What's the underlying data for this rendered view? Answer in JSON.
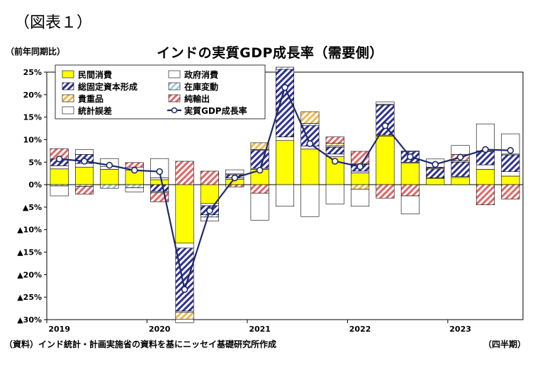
{
  "figure_label": "（図表１）",
  "unit_label": "（前年同期比）",
  "source_note": "（資料）インド統計・計画実施省の資料を基にニッセイ基礎研究所作成",
  "period_label": "（四半期）",
  "chart_data": {
    "type": "bar",
    "stacked": true,
    "title": "インドの実質GDP成長率（需要側）",
    "ylim": [
      -30,
      25
    ],
    "yticks": [
      {
        "value": 25,
        "label": "25%"
      },
      {
        "value": 20,
        "label": "20%"
      },
      {
        "value": 15,
        "label": "15%"
      },
      {
        "value": 10,
        "label": "10%"
      },
      {
        "value": 5,
        "label": "5%"
      },
      {
        "value": 0,
        "label": "0%"
      },
      {
        "value": -5,
        "label": "▲5%"
      },
      {
        "value": -10,
        "label": "▲10%"
      },
      {
        "value": -15,
        "label": "▲15%"
      },
      {
        "value": -20,
        "label": "▲20%"
      },
      {
        "value": -25,
        "label": "▲25%"
      },
      {
        "value": -30,
        "label": "▲30%"
      }
    ],
    "year_labels": [
      {
        "index": 0,
        "label": "2019"
      },
      {
        "index": 4,
        "label": "2020"
      },
      {
        "index": 8,
        "label": "2021"
      },
      {
        "index": 12,
        "label": "2022"
      },
      {
        "index": 16,
        "label": "2023"
      }
    ],
    "series": [
      {
        "name": "民間消費",
        "color": "#ffff00",
        "pattern": "solid",
        "values": [
          3.5,
          3.9,
          3.4,
          3.2,
          1.1,
          -13.0,
          -4.2,
          1.2,
          3.4,
          9.8,
          7.9,
          6.2,
          2.6,
          10.8,
          4.8,
          1.4,
          1.6,
          3.4,
          1.9
        ]
      },
      {
        "name": "政府消費",
        "color": "#ffffff",
        "pattern": "solid",
        "values": [
          0.7,
          0.8,
          0.6,
          0.7,
          0.4,
          -1.1,
          -0.5,
          0.3,
          0.2,
          0.8,
          0.7,
          0.6,
          0.4,
          0.2,
          0.2,
          0.1,
          0.2,
          1.0,
          1.0
        ]
      },
      {
        "name": "総固定資本形成",
        "color": "#2e3192",
        "pattern": "diag",
        "values": [
          1.5,
          2.0,
          0.0,
          0.0,
          -1.5,
          -14.0,
          -2.0,
          0.7,
          4.0,
          15.0,
          4.5,
          1.5,
          1.5,
          6.7,
          2.3,
          2.0,
          3.2,
          2.9,
          3.7
        ]
      },
      {
        "name": "在庫変動",
        "color": "#9fc3e7",
        "pattern": "diag-light",
        "values": [
          -0.3,
          -0.4,
          -0.8,
          -0.7,
          -0.3,
          -0.3,
          -0.5,
          0.2,
          0.2,
          0.5,
          0.5,
          0.3,
          0.2,
          0.2,
          0.2,
          0.2,
          0.3,
          0.2,
          0.2
        ]
      },
      {
        "name": "貴重品",
        "color": "#f2b84b",
        "pattern": "diag",
        "values": [
          0.0,
          0.0,
          0.0,
          0.0,
          0.0,
          -1.5,
          0.0,
          0.0,
          1.5,
          0.0,
          2.6,
          0.6,
          -1.0,
          0.0,
          0.0,
          0.0,
          0.0,
          0.0,
          0.0
        ]
      },
      {
        "name": "純輸出",
        "color": "#e06666",
        "pattern": "diag",
        "values": [
          2.3,
          -1.7,
          0.0,
          1.0,
          -2.0,
          5.2,
          3.0,
          -0.5,
          -1.9,
          0.0,
          0.0,
          1.4,
          2.7,
          -3.0,
          -2.5,
          0.2,
          1.4,
          -4.5,
          -3.2
        ]
      },
      {
        "name": "統計誤差",
        "color": "#ffffff",
        "pattern": "solid",
        "values": [
          -2.2,
          1.1,
          1.8,
          -0.9,
          4.3,
          -0.8,
          -0.9,
          0.9,
          -6.0,
          -4.8,
          -7.1,
          -4.3,
          -3.8,
          0.5,
          -4.0,
          1.8,
          2.0,
          6.0,
          4.5
        ]
      }
    ],
    "line": {
      "name": "実質GDP成長率",
      "color": "#1f2a6b",
      "values": [
        5.7,
        5.2,
        4.3,
        3.2,
        2.9,
        -23.3,
        -5.8,
        1.5,
        3.2,
        21.6,
        9.1,
        5.2,
        4.0,
        13.1,
        6.2,
        4.5,
        6.1,
        7.8,
        7.6
      ]
    },
    "grid": false,
    "legend_position": "top-left"
  }
}
